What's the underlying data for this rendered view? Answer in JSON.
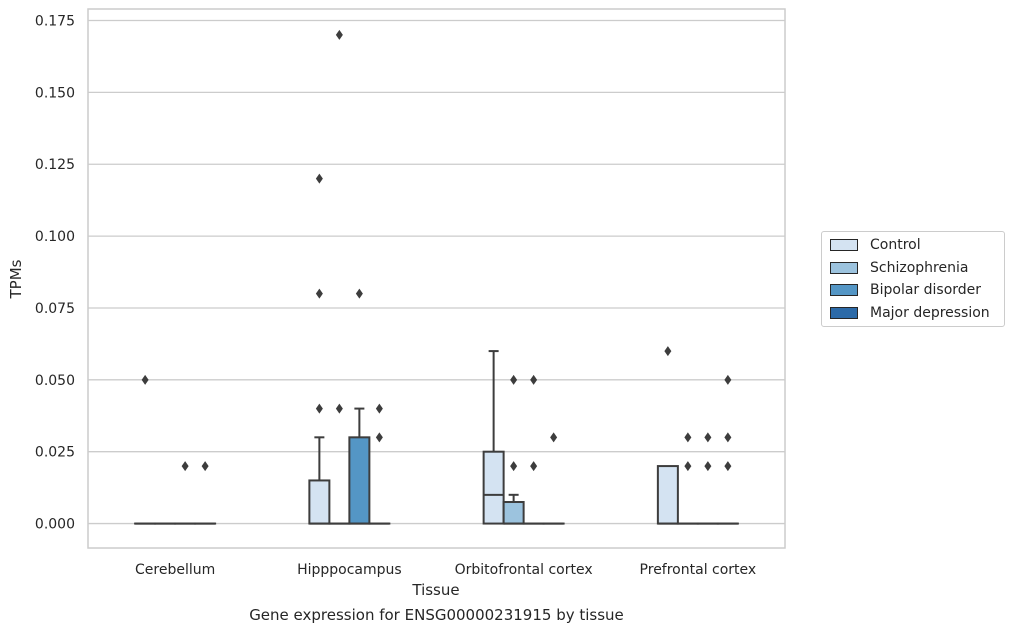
{
  "chart_data": {
    "type": "box",
    "title": "",
    "caption": "Gene expression for ENSG00000231915 by tissue",
    "xlabel": "Tissue",
    "ylabel": "TPMs",
    "ylim": [
      -0.0085,
      0.179
    ],
    "yticks": [
      "0.000",
      "0.025",
      "0.050",
      "0.075",
      "0.100",
      "0.125",
      "0.150",
      "0.175"
    ],
    "grid": true,
    "legend_position": "right",
    "categories": [
      "Cerebellum",
      "Hipppocampus",
      "Orbitofrontal cortex",
      "Prefrontal cortex"
    ],
    "series": [
      {
        "name": "Control",
        "color": "#d4e3f2",
        "boxes": [
          {
            "q1": 0,
            "median": 0,
            "q3": 0,
            "whisker_low": 0,
            "whisker_high": 0,
            "outliers": [
              0.05
            ]
          },
          {
            "q1": 0,
            "median": 0,
            "q3": 0.015,
            "whisker_low": 0,
            "whisker_high": 0.03,
            "outliers": [
              0.04,
              0.08,
              0.12
            ]
          },
          {
            "q1": 0,
            "median": 0.01,
            "q3": 0.025,
            "whisker_low": 0,
            "whisker_high": 0.06,
            "outliers": []
          },
          {
            "q1": 0,
            "median": 0,
            "q3": 0.02,
            "whisker_low": 0,
            "whisker_high": 0.02,
            "outliers": [
              0.06
            ]
          }
        ]
      },
      {
        "name": "Schizophrenia",
        "color": "#9cc3de",
        "boxes": [
          {
            "q1": 0,
            "median": 0,
            "q3": 0,
            "whisker_low": 0,
            "whisker_high": 0,
            "outliers": []
          },
          {
            "q1": 0,
            "median": 0,
            "q3": 0,
            "whisker_low": 0,
            "whisker_high": 0,
            "outliers": [
              0.04,
              0.17
            ]
          },
          {
            "q1": 0,
            "median": 0,
            "q3": 0.0075,
            "whisker_low": 0,
            "whisker_high": 0.01,
            "outliers": [
              0.02,
              0.05
            ]
          },
          {
            "q1": 0,
            "median": 0,
            "q3": 0,
            "whisker_low": 0,
            "whisker_high": 0,
            "outliers": [
              0.02,
              0.03
            ]
          }
        ]
      },
      {
        "name": "Bipolar disorder",
        "color": "#5496c5",
        "boxes": [
          {
            "q1": 0,
            "median": 0,
            "q3": 0,
            "whisker_low": 0,
            "whisker_high": 0,
            "outliers": [
              0.02
            ]
          },
          {
            "q1": 0,
            "median": 0,
            "q3": 0.03,
            "whisker_low": 0,
            "whisker_high": 0.04,
            "outliers": [
              0.08
            ]
          },
          {
            "q1": 0,
            "median": 0,
            "q3": 0,
            "whisker_low": 0,
            "whisker_high": 0,
            "outliers": [
              0.02,
              0.05
            ]
          },
          {
            "q1": 0,
            "median": 0,
            "q3": 0,
            "whisker_low": 0,
            "whisker_high": 0,
            "outliers": [
              0.02,
              0.03
            ]
          }
        ]
      },
      {
        "name": "Major depression",
        "color": "#2c6aa8",
        "boxes": [
          {
            "q1": 0,
            "median": 0,
            "q3": 0,
            "whisker_low": 0,
            "whisker_high": 0,
            "outliers": [
              0.02
            ]
          },
          {
            "q1": 0,
            "median": 0,
            "q3": 0,
            "whisker_low": 0,
            "whisker_high": 0,
            "outliers": [
              0.03,
              0.04
            ]
          },
          {
            "q1": 0,
            "median": 0,
            "q3": 0,
            "whisker_low": 0,
            "whisker_high": 0,
            "outliers": [
              0.03
            ]
          },
          {
            "q1": 0,
            "median": 0,
            "q3": 0,
            "whisker_low": 0,
            "whisker_high": 0,
            "outliers": [
              0.02,
              0.03,
              0.05
            ]
          }
        ]
      }
    ]
  }
}
